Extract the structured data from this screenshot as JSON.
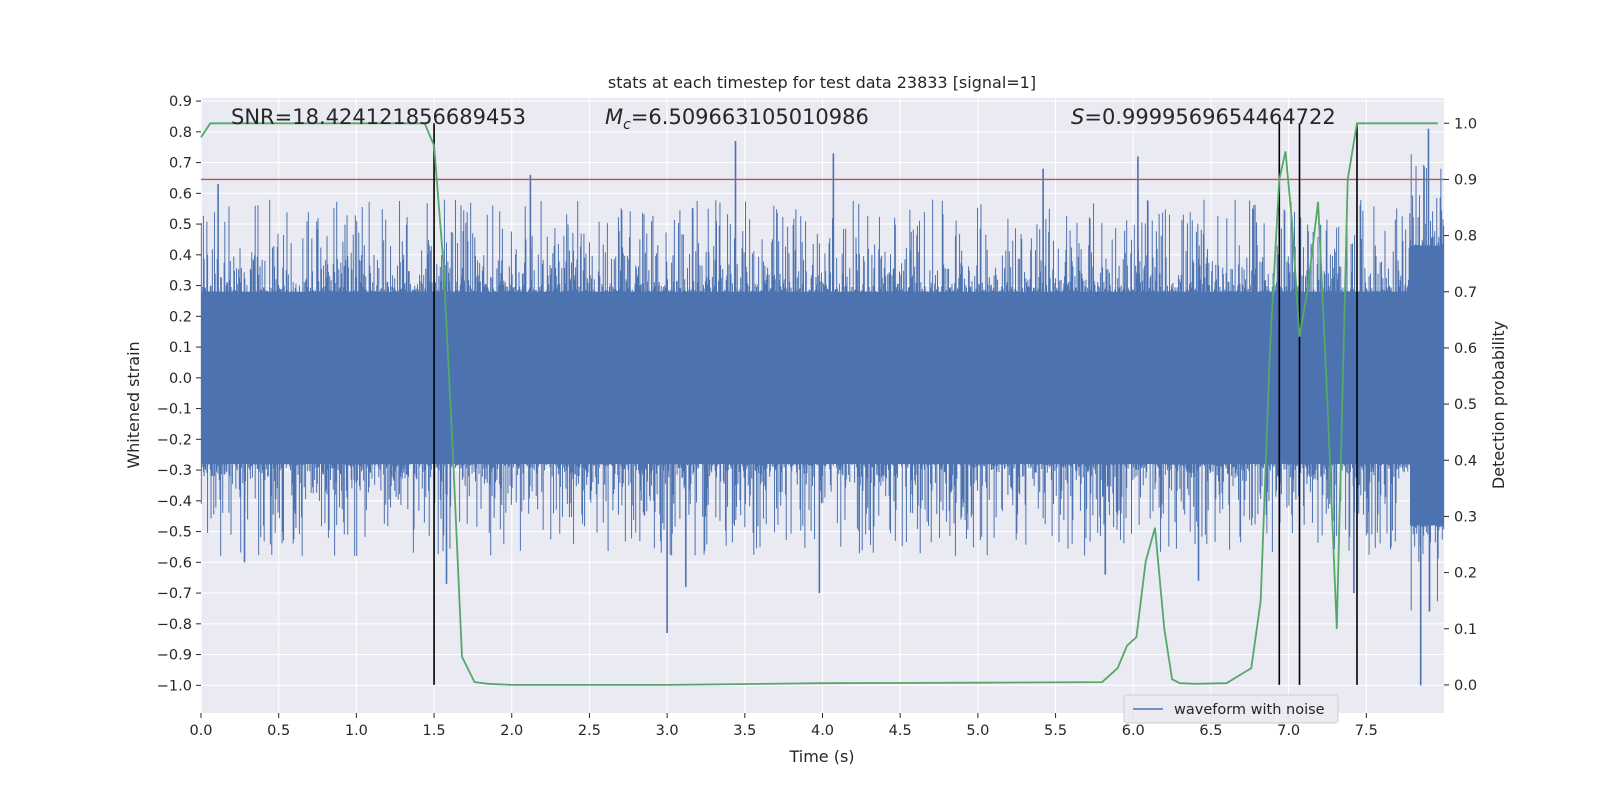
{
  "chart_data": {
    "type": "line",
    "title": "stats at each timestep for test data 23833 [signal=1]",
    "xlabel": "Time (s)",
    "ylabel_left": "Whitened strain",
    "ylabel_right": "Detection probability",
    "xlim": [
      0.0,
      8.0
    ],
    "ylim_left": [
      -1.09,
      0.91
    ],
    "ylim_right": [
      -0.05,
      1.045
    ],
    "x_ticks": [
      0.0,
      0.5,
      1.0,
      1.5,
      2.0,
      2.5,
      3.0,
      3.5,
      4.0,
      4.5,
      5.0,
      5.5,
      6.0,
      6.5,
      7.0,
      7.5
    ],
    "x_tick_labels": [
      "0.0",
      "0.5",
      "1.0",
      "1.5",
      "2.0",
      "2.5",
      "3.0",
      "3.5",
      "4.0",
      "4.5",
      "5.0",
      "5.5",
      "6.0",
      "6.5",
      "7.0",
      "7.5"
    ],
    "y_left_ticks": [
      -1.0,
      -0.9,
      -0.8,
      -0.7,
      -0.6,
      -0.5,
      -0.4,
      -0.3,
      -0.2,
      -0.1,
      0.0,
      0.1,
      0.2,
      0.3,
      0.4,
      0.5,
      0.6,
      0.7,
      0.8,
      0.9
    ],
    "y_left_tick_labels": [
      "−1.0",
      "−0.9",
      "−0.8",
      "−0.7",
      "−0.6",
      "−0.5",
      "−0.4",
      "−0.3",
      "−0.2",
      "−0.1",
      "0.0",
      "0.1",
      "0.2",
      "0.3",
      "0.4",
      "0.5",
      "0.6",
      "0.7",
      "0.8",
      "0.9"
    ],
    "y_right_ticks": [
      0.0,
      0.1,
      0.2,
      0.3,
      0.4,
      0.5,
      0.6,
      0.7,
      0.8,
      0.9,
      1.0
    ],
    "y_right_tick_labels": [
      "0.0",
      "0.1",
      "0.2",
      "0.3",
      "0.4",
      "0.5",
      "0.6",
      "0.7",
      "0.8",
      "0.9",
      "1.0"
    ],
    "annotations": {
      "snr": "SNR=18.424121856689453",
      "mc_symbol": "M",
      "mc_subscript": "c",
      "mc_value": "=6.509663105010986",
      "s_symbol": "S",
      "s_value": "=0.9999569654464722"
    },
    "threshold": {
      "value": 0.9,
      "axis": "right",
      "color": "#c44e52"
    },
    "vertical_lines": [
      1.5,
      6.94,
      7.07,
      7.44
    ],
    "waveform": {
      "name": "waveform with noise",
      "color": "#4c72b0",
      "core_amplitude": 0.28,
      "extremes": [
        {
          "t": 0.11,
          "v": 0.63
        },
        {
          "t": 0.28,
          "v": -0.6
        },
        {
          "t": 1.58,
          "v": -0.67
        },
        {
          "t": 2.12,
          "v": 0.66
        },
        {
          "t": 3.0,
          "v": -0.83
        },
        {
          "t": 3.12,
          "v": -0.68
        },
        {
          "t": 3.44,
          "v": 0.77
        },
        {
          "t": 3.98,
          "v": -0.7
        },
        {
          "t": 4.07,
          "v": 0.73
        },
        {
          "t": 5.42,
          "v": 0.68
        },
        {
          "t": 5.82,
          "v": -0.64
        },
        {
          "t": 6.03,
          "v": 0.72
        },
        {
          "t": 6.42,
          "v": -0.66
        },
        {
          "t": 6.77,
          "v": 0.55
        },
        {
          "t": 7.42,
          "v": -0.7
        },
        {
          "t": 7.85,
          "v": -1.0
        },
        {
          "t": 7.9,
          "v": 0.81
        }
      ]
    },
    "detection_probability": {
      "color": "#55a868",
      "x": [
        0.0,
        0.06,
        0.5,
        1.0,
        1.44,
        1.5,
        1.56,
        1.62,
        1.68,
        1.76,
        1.85,
        2.0,
        3.0,
        4.0,
        5.0,
        5.8,
        5.9,
        5.96,
        6.02,
        6.08,
        6.14,
        6.2,
        6.25,
        6.3,
        6.4,
        6.6,
        6.76,
        6.82,
        6.88,
        6.94,
        6.98,
        7.02,
        7.07,
        7.12,
        7.19,
        7.25,
        7.31,
        7.38,
        7.44,
        7.5,
        7.56,
        7.7,
        7.85,
        7.96
      ],
      "y": [
        0.975,
        1.0,
        1.0,
        1.0,
        1.0,
        0.96,
        0.75,
        0.42,
        0.05,
        0.005,
        0.002,
        0.0,
        0.0,
        0.003,
        0.004,
        0.005,
        0.03,
        0.07,
        0.085,
        0.22,
        0.28,
        0.1,
        0.01,
        0.003,
        0.002,
        0.003,
        0.03,
        0.15,
        0.6,
        0.9,
        0.95,
        0.83,
        0.62,
        0.7,
        0.86,
        0.5,
        0.1,
        0.9,
        1.0,
        1.0,
        1.0,
        1.0,
        1.0,
        1.0
      ]
    },
    "legend": {
      "label": "waveform with noise",
      "placement": "lower-right"
    }
  }
}
